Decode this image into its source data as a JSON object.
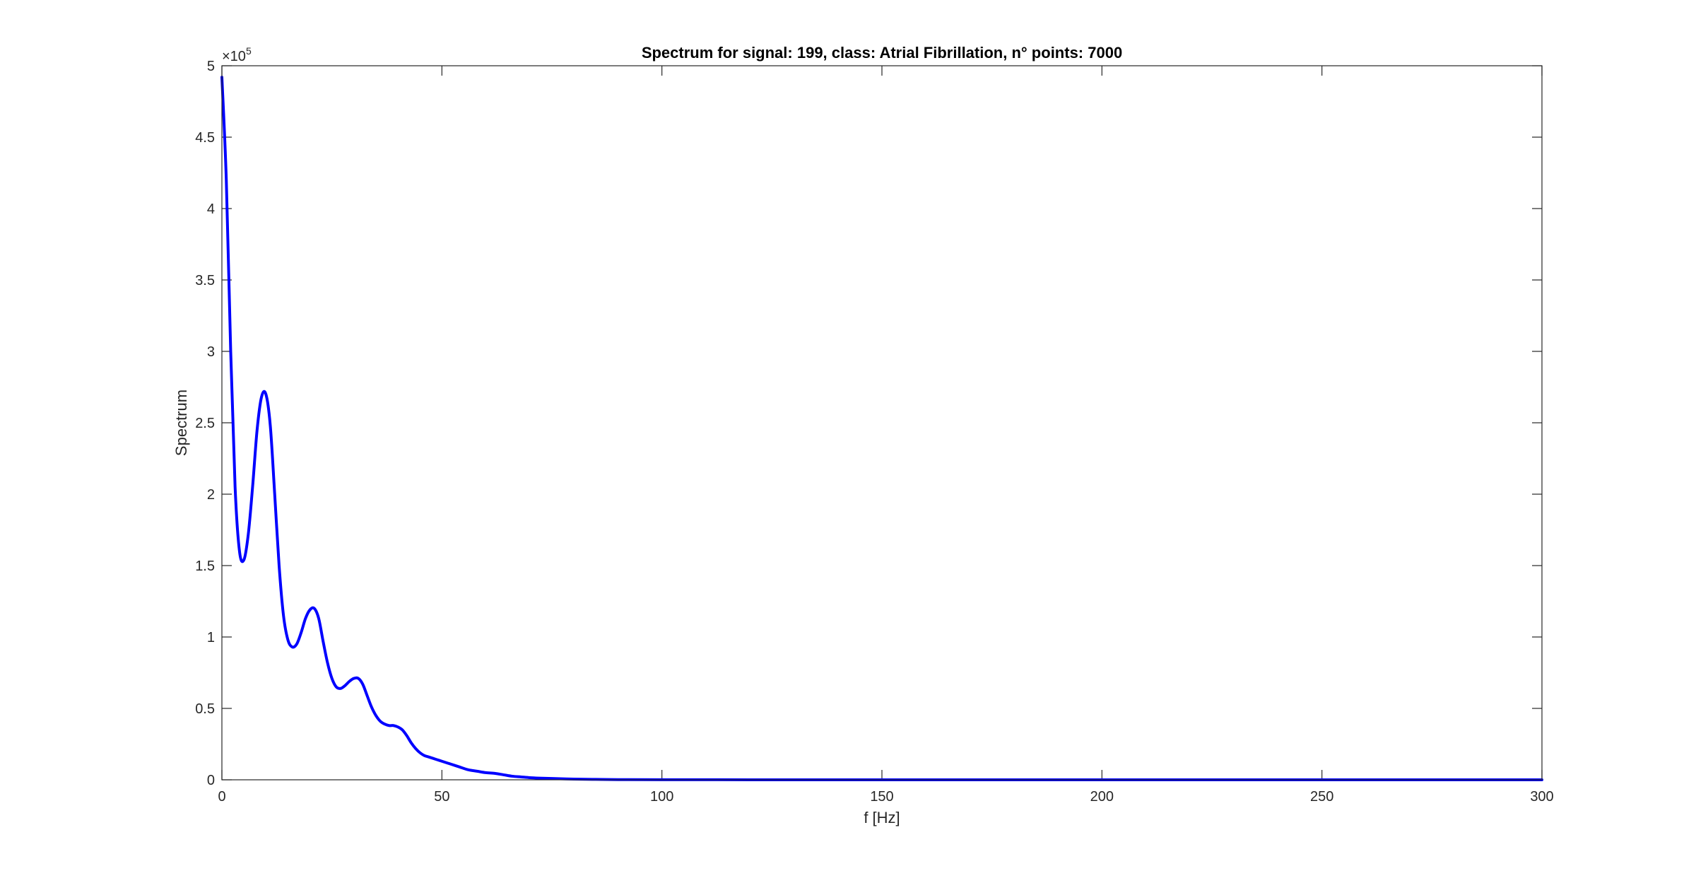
{
  "chart_data": {
    "type": "line",
    "title": "Spectrum for signal: 199, class: Atrial Fibrillation, n° points: 7000",
    "xlabel": "f [Hz]",
    "ylabel": "Spectrum",
    "xlim": [
      0,
      300
    ],
    "ylim": [
      0,
      500000
    ],
    "x_ticks": [
      0,
      50,
      100,
      150,
      200,
      250,
      300
    ],
    "x_tick_labels": [
      "0",
      "50",
      "100",
      "150",
      "200",
      "250",
      "300"
    ],
    "y_ticks": [
      0,
      50000,
      100000,
      150000,
      200000,
      250000,
      300000,
      350000,
      400000,
      450000,
      500000
    ],
    "y_tick_labels": [
      "0",
      "0.5",
      "1",
      "1.5",
      "2",
      "2.5",
      "3",
      "3.5",
      "4",
      "4.5",
      "5"
    ],
    "y_exponent_base": "×10",
    "y_exponent_power": "5",
    "grid": false,
    "line_color": "#0000ff",
    "series": [
      {
        "x": [
          0,
          1,
          2,
          3,
          4,
          5,
          6,
          7,
          8,
          9,
          10,
          11,
          12,
          13,
          14,
          15,
          16,
          17,
          18,
          19,
          20,
          21,
          22,
          23,
          24,
          25,
          26,
          27,
          28,
          29,
          30,
          31,
          32,
          33,
          34,
          35,
          36,
          37,
          38,
          39,
          40,
          41,
          42,
          43,
          44,
          45,
          46,
          47,
          48,
          49,
          50,
          52,
          54,
          56,
          58,
          60,
          62,
          64,
          66,
          68,
          70,
          72,
          75,
          80,
          85,
          90,
          100,
          120,
          150,
          200,
          250,
          300
        ],
        "y": [
          492000,
          420000,
          300000,
          205000,
          160000,
          154000,
          172000,
          206000,
          245000,
          268000,
          270000,
          248000,
          200000,
          150000,
          115000,
          98000,
          93000,
          95000,
          103000,
          113000,
          119000,
          120000,
          113000,
          97000,
          82000,
          71000,
          65000,
          64000,
          66000,
          69000,
          71000,
          71000,
          67000,
          59000,
          51000,
          45000,
          41000,
          39000,
          38000,
          38000,
          37000,
          35000,
          31000,
          26000,
          22000,
          19000,
          17000,
          16000,
          15000,
          14000,
          13000,
          11000,
          9000,
          7000,
          6000,
          5000,
          4500,
          3500,
          2500,
          2000,
          1500,
          1200,
          900,
          500,
          300,
          150,
          80,
          30,
          10,
          5,
          2,
          1
        ]
      }
    ]
  }
}
